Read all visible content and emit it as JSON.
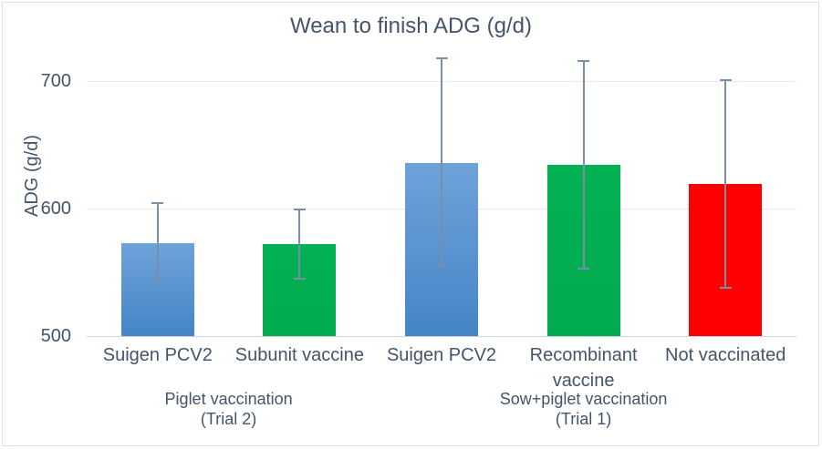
{
  "chart_data": {
    "type": "bar",
    "title": "Wean to finish ADG (g/d)",
    "ylabel": "ADG (g/d)",
    "xlabel": "",
    "yticks": [
      500,
      600,
      700
    ],
    "ylim": [
      500,
      730
    ],
    "grid": "horizontal",
    "legend": "none",
    "bars": [
      {
        "label": "Suigen PCV2",
        "label_lines": [
          "Suigen PCV2"
        ],
        "group": "Piglet vaccination (Trial 2)",
        "value": 573,
        "error_high": 604,
        "error_low": 542,
        "color_key": "blue"
      },
      {
        "label": "Subunit vaccine",
        "label_lines": [
          "Subunit vaccine"
        ],
        "group": "Piglet vaccination (Trial 2)",
        "value": 572,
        "error_high": 599,
        "error_low": 545,
        "color_key": "green"
      },
      {
        "label": "Suigen PCV2",
        "label_lines": [
          "Suigen PCV2"
        ],
        "group": "Sow+piglet vaccination (Trial 1)",
        "value": 636,
        "error_high": 718,
        "error_low": 555,
        "color_key": "blue"
      },
      {
        "label": "Recombinant vaccine",
        "label_lines": [
          "Recombinant",
          "vaccine"
        ],
        "group": "Sow+piglet vaccination (Trial 1)",
        "value": 634,
        "error_high": 716,
        "error_low": 553,
        "color_key": "green"
      },
      {
        "label": "Not vaccinated",
        "label_lines": [
          "Not vaccinated"
        ],
        "group": "Sow+piglet vaccination (Trial 1)",
        "value": 619,
        "error_high": 701,
        "error_low": 538,
        "color_key": "red"
      }
    ],
    "groups": [
      {
        "lines": [
          "Piglet vaccination",
          "(Trial 2)"
        ],
        "bar_indexes": [
          0,
          1
        ]
      },
      {
        "lines": [
          "Sow+piglet vaccination",
          "(Trial 1)"
        ],
        "bar_indexes": [
          2,
          3,
          4
        ]
      }
    ],
    "colors": {
      "blue_top": "#6FA2DA",
      "blue_bottom": "#4485C7",
      "green_top": "#04B253",
      "green_bottom": "#00AB4D",
      "red": "#FF0000",
      "text": "#44546A",
      "gridline": "#E5E9F0",
      "axis_line": "#CCD4E0",
      "error_bar": "#7C8DA6",
      "border": "#DDE2E9",
      "background": "#FFFFFF"
    }
  }
}
